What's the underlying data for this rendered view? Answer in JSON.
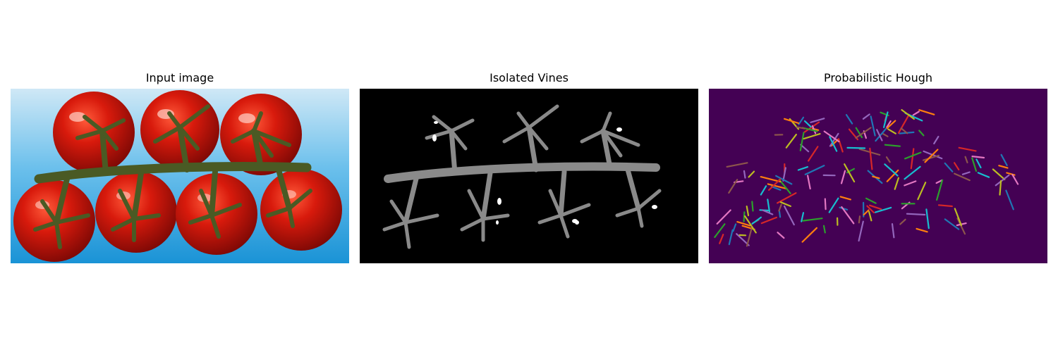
{
  "panels": [
    {
      "title": "Input image"
    },
    {
      "title": "Isolated Vines"
    },
    {
      "title": "Probabilistic Hough"
    }
  ],
  "colors": {
    "background_sky": "#3fa9df",
    "tomato_red": "#c8140a",
    "vine_green": "#4a5a24",
    "mask_bg": "#000000",
    "hough_bg": "#440154",
    "line_palette": [
      "#1f77b4",
      "#ff7f0e",
      "#2ca02c",
      "#d62728",
      "#9467bd",
      "#8c564b",
      "#e377c2",
      "#17becf",
      "#bcbd22"
    ]
  }
}
